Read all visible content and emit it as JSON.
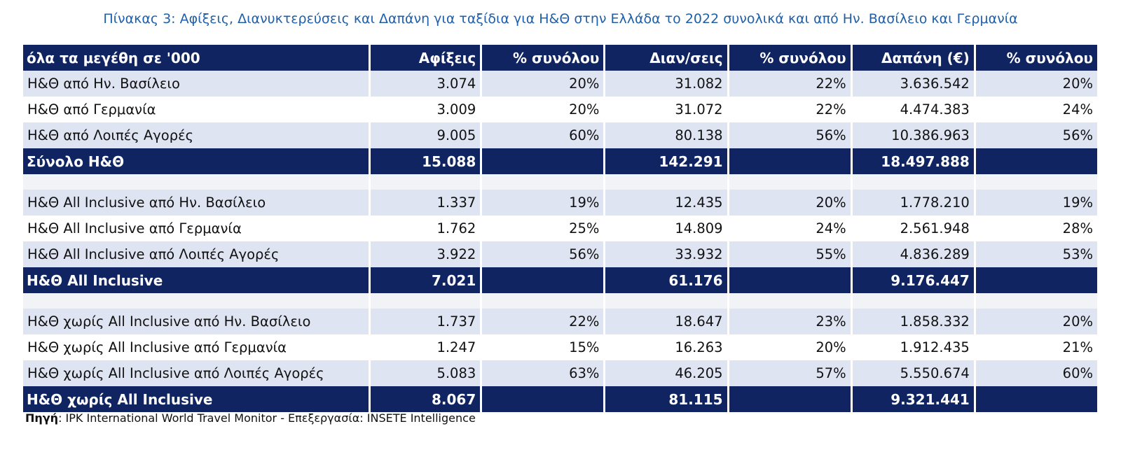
{
  "title": "Πίνακας 3: Αφίξεις, Διανυκτερεύσεις και Δαπάνη για ταξίδια για Η&Θ στην Ελλάδα το 2022 συνολικά και από Ην. Βασίλειο και Γερμανία",
  "table": {
    "header": [
      "όλα τα μεγέθη σε '000",
      "Αφίξεις",
      "% συνόλου",
      "Διαν/σεις",
      "% συνόλου",
      "Δαπάνη (€)",
      "% συνόλου"
    ],
    "groups": [
      {
        "rows": [
          [
            "Η&Θ από Ην. Βασίλειο",
            "3.074",
            "20%",
            "31.082",
            "22%",
            "3.636.542",
            "20%"
          ],
          [
            "Η&Θ από Γερμανία",
            "3.009",
            "20%",
            "31.072",
            "22%",
            "4.474.383",
            "24%"
          ],
          [
            "Η&Θ από Λοιπές Αγορές",
            "9.005",
            "60%",
            "80.138",
            "56%",
            "10.386.963",
            "56%"
          ]
        ],
        "total": [
          "Σύνολο Η&Θ",
          "15.088",
          "",
          "142.291",
          "",
          "18.497.888",
          ""
        ]
      },
      {
        "rows": [
          [
            "Η&Θ All Inclusive από Ην. Βασίλειο",
            "1.337",
            "19%",
            "12.435",
            "20%",
            "1.778.210",
            "19%"
          ],
          [
            "Η&Θ All Inclusive από Γερμανία",
            "1.762",
            "25%",
            "14.809",
            "24%",
            "2.561.948",
            "28%"
          ],
          [
            "Η&Θ All Inclusive από Λοιπές Αγορές",
            "3.922",
            "56%",
            "33.932",
            "55%",
            "4.836.289",
            "53%"
          ]
        ],
        "total": [
          "Η&Θ All Inclusive",
          "7.021",
          "",
          "61.176",
          "",
          "9.176.447",
          ""
        ]
      },
      {
        "rows": [
          [
            "Η&Θ χωρίς All Inclusive από Ην. Βασίλειο",
            "1.737",
            "22%",
            "18.647",
            "23%",
            "1.858.332",
            "20%"
          ],
          [
            "Η&Θ χωρίς All Inclusive από Γερμανία",
            "1.247",
            "15%",
            "16.263",
            "20%",
            "1.912.435",
            "21%"
          ],
          [
            "Η&Θ χωρίς All Inclusive από Λοιπές Αγορές",
            "5.083",
            "63%",
            "46.205",
            "57%",
            "5.550.674",
            "60%"
          ]
        ],
        "total": [
          "Η&Θ χωρίς All Inclusive",
          "8.067",
          "",
          "81.115",
          "",
          "9.321.441",
          ""
        ]
      }
    ]
  },
  "source": {
    "label": "Πηγή",
    "text": ": IPK International World Travel Monitor - Επεξεργασία: INSETE Intelligence"
  }
}
